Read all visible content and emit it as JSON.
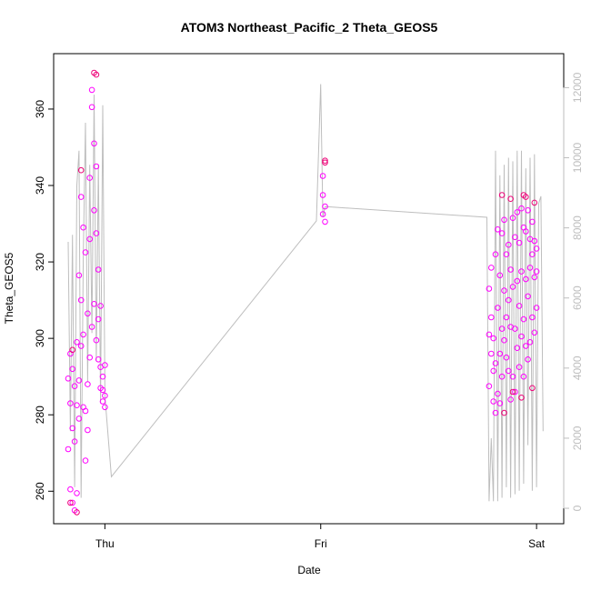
{
  "chart_data": {
    "type": "scatter",
    "title": "ATOM3 Northeast_Pacific_2 Theta_GEOS5",
    "xlabel": "Date",
    "ylabel": "Theta_GEOS5",
    "x_ticks": [
      "Thu",
      "Fri",
      "Sat"
    ],
    "x_tick_positions": [
      0,
      1,
      2
    ],
    "xlim": [
      -0.17,
      2.05
    ],
    "ylim": [
      251.5,
      374.5
    ],
    "y_ticks": [
      260,
      280,
      300,
      320,
      340,
      360
    ],
    "y2lim": [
      -440,
      12970
    ],
    "y2_ticks": [
      0,
      2000,
      4000,
      6000,
      8000,
      10000,
      12000
    ],
    "y2_color": "#bebebe",
    "line_color": "#bebebe",
    "point_colors": [
      "#ff00ff",
      "#ee0077"
    ],
    "grid": false,
    "secondary_series": {
      "name": "",
      "axis": "right",
      "x": [
        -0.17,
        -0.16,
        -0.15,
        -0.14,
        -0.13,
        -0.12,
        -0.11,
        -0.1,
        -0.09,
        -0.08,
        -0.07,
        -0.06,
        -0.05,
        -0.04,
        -0.03,
        -0.02,
        -0.01,
        0.0,
        0.03,
        0.98,
        1.0,
        1.01,
        1.02,
        1.04,
        1.77,
        1.78,
        1.79,
        1.8,
        1.81,
        1.82,
        1.83,
        1.84,
        1.85,
        1.86,
        1.87,
        1.88,
        1.89,
        1.9,
        1.91,
        1.92,
        1.93,
        1.94,
        1.95,
        1.96,
        1.97,
        1.98,
        1.99,
        2.0,
        2.01,
        2.02,
        2.03
      ],
      "values": [
        7600,
        2200,
        7800,
        600,
        9200,
        10200,
        300,
        7200,
        11000,
        3600,
        9800,
        5000,
        11800,
        4200,
        9800,
        3000,
        11500,
        3200,
        900,
        8200,
        12100,
        8300,
        8600,
        8600,
        8300,
        200,
        2000,
        200,
        10200,
        200,
        9500,
        300,
        9800,
        600,
        10000,
        300,
        9900,
        400,
        10200,
        500,
        10200,
        700,
        9700,
        1800,
        10000,
        500,
        10100,
        600,
        8700,
        8900,
        2200
      ]
    },
    "series": [
      {
        "name": "",
        "color": "#ff00ff",
        "x": [
          -0.17,
          -0.17,
          -0.16,
          -0.16,
          -0.16,
          -0.15,
          -0.15,
          -0.15,
          -0.14,
          -0.14,
          -0.14,
          -0.13,
          -0.13,
          -0.13,
          -0.12,
          -0.12,
          -0.12,
          -0.11,
          -0.11,
          -0.11,
          -0.1,
          -0.1,
          -0.1,
          -0.09,
          -0.09,
          -0.09,
          -0.08,
          -0.08,
          -0.08,
          -0.07,
          -0.07,
          -0.07,
          -0.06,
          -0.06,
          -0.06,
          -0.05,
          -0.05,
          -0.05,
          -0.04,
          -0.04,
          -0.04,
          -0.03,
          -0.03,
          -0.03,
          -0.02,
          -0.02,
          -0.02,
          -0.01,
          -0.01,
          -0.01,
          0.0,
          0.0,
          0.0,
          1.01,
          1.01,
          1.01,
          1.02,
          1.02,
          1.78,
          1.78,
          1.78,
          1.79,
          1.79,
          1.79,
          1.8,
          1.8,
          1.8,
          1.81,
          1.81,
          1.81,
          1.82,
          1.82,
          1.82,
          1.83,
          1.83,
          1.83,
          1.84,
          1.84,
          1.84,
          1.85,
          1.85,
          1.85,
          1.86,
          1.86,
          1.86,
          1.87,
          1.87,
          1.87,
          1.88,
          1.88,
          1.88,
          1.89,
          1.89,
          1.89,
          1.9,
          1.9,
          1.9,
          1.91,
          1.91,
          1.91,
          1.92,
          1.92,
          1.92,
          1.93,
          1.93,
          1.93,
          1.94,
          1.94,
          1.94,
          1.95,
          1.95,
          1.95,
          1.96,
          1.96,
          1.96,
          1.97,
          1.97,
          1.97,
          1.98,
          1.98,
          1.98,
          1.99,
          1.99,
          1.99,
          2.0,
          2.0,
          2.0
        ],
        "values": [
          289.5,
          271.0,
          296.0,
          260.5,
          283.0,
          292.0,
          257.0,
          276.5,
          287.5,
          255.0,
          273.0,
          299.0,
          259.5,
          282.5,
          316.5,
          279.0,
          289.0,
          337.0,
          298.0,
          310.0,
          329.0,
          282.0,
          301.0,
          322.5,
          268.0,
          281.0,
          306.5,
          276.0,
          288.0,
          342.0,
          295.0,
          326.0,
          365.0,
          360.5,
          303.0,
          351.0,
          333.5,
          309.0,
          345.0,
          327.5,
          299.5,
          318.0,
          294.5,
          305.0,
          308.5,
          287.0,
          292.5,
          286.5,
          290.0,
          283.5,
          285.0,
          282.0,
          293.0,
          342.5,
          337.5,
          332.5,
          334.5,
          330.5,
          287.5,
          301.0,
          313.0,
          296.0,
          305.5,
          318.5,
          283.5,
          291.5,
          300.0,
          280.5,
          293.5,
          322.0,
          285.5,
          308.0,
          328.5,
          283.0,
          296.0,
          316.5,
          290.0,
          302.5,
          327.5,
          299.5,
          312.5,
          331.0,
          295.0,
          305.5,
          322.0,
          291.5,
          310.0,
          324.5,
          284.0,
          303.0,
          318.0,
          290.0,
          313.5,
          331.5,
          286.0,
          302.5,
          326.5,
          297.5,
          315.0,
          333.0,
          292.5,
          308.5,
          325.0,
          300.5,
          317.5,
          334.0,
          290.0,
          305.0,
          329.0,
          298.0,
          315.5,
          328.0,
          294.5,
          311.0,
          333.5,
          299.0,
          318.5,
          326.0,
          305.5,
          322.0,
          330.5,
          301.5,
          316.0,
          325.5,
          308.0,
          317.5,
          323.5
        ]
      },
      {
        "name": "",
        "color": "#ee0077",
        "x": [
          -0.16,
          -0.15,
          -0.13,
          -0.11,
          -0.05,
          -0.04,
          1.02,
          1.02,
          1.84,
          1.85,
          1.88,
          1.89,
          1.93,
          1.94,
          1.95,
          1.98,
          1.99
        ],
        "values": [
          257.0,
          297.0,
          254.5,
          344.0,
          369.5,
          369.0,
          346.5,
          346.0,
          337.5,
          280.5,
          336.5,
          286.0,
          284.5,
          337.5,
          337.0,
          287.0,
          335.5
        ]
      }
    ]
  }
}
